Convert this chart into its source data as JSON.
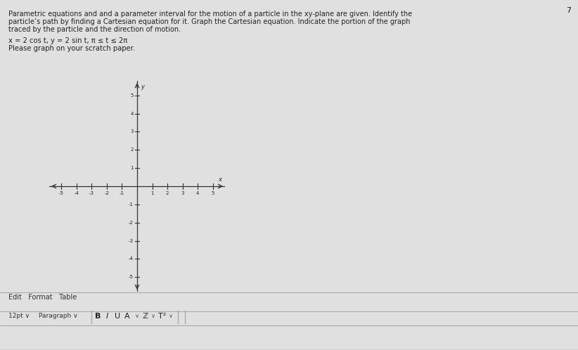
{
  "background_color": "#e0e0e0",
  "text_line1": "Parametric equations and and a parameter interval for the motion of a particle in the xy-plane are given. Identify the",
  "text_line2": "particle’s path by finding a Cartesian equation for it. Graph the Cartesian equation. Indicate the portion of the graph",
  "text_line3": "traced by the particle and the direction of motion.",
  "equation_line": "x = 2 cos t, y = 2 sin t, π ≤ t ≤ 2π",
  "please_line": "Please graph on your scratch paper.",
  "page_number": "7",
  "axis_xlim": [
    -5.8,
    5.8
  ],
  "axis_ylim": [
    -5.8,
    5.8
  ],
  "xticks": [
    -5,
    -4,
    -3,
    -2,
    -1,
    1,
    2,
    3,
    4,
    5
  ],
  "yticks": [
    -5,
    -4,
    -3,
    -2,
    -1,
    1,
    2,
    3,
    4,
    5
  ],
  "axis_label_x": "x",
  "axis_label_y": "y",
  "edit_format_table": "Edit   Format   Table",
  "toolbar_left": "12pt ∨   Paragraph ∨",
  "toolbar_buttons": "B   I   U   A ∨   ℤ ∨   T²∨   |   |   |"
}
